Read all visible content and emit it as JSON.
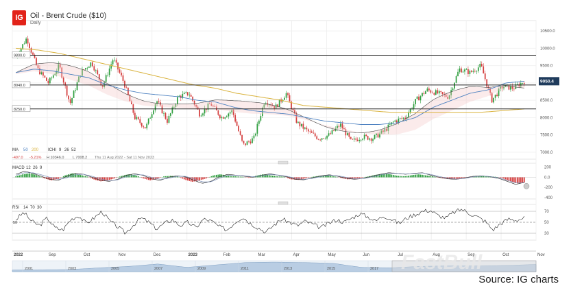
{
  "header": {
    "logo": "IG",
    "title": "Oil - Brent Crude ($10)",
    "subtitle": "Daily"
  },
  "source": "Source: IG charts",
  "watermark": "FastBull",
  "chart_data": [
    {
      "type": "line",
      "title": "Oil - Brent Crude ($10)",
      "series_type": "candlestick with MA 50 / MA 200 and Ichimoku cloud",
      "ylim": [
        6800,
        10800
      ],
      "y_ticks": [
        10500,
        10000,
        9500,
        9000,
        8500,
        8000,
        7500,
        7000
      ],
      "x_labels": [
        "2022",
        "Sep",
        "Oct",
        "Nov",
        "Dec",
        "2023",
        "Feb",
        "Mar",
        "Apr",
        "May",
        "Jun",
        "Jul",
        "Aug",
        "Sep",
        "Oct",
        "Nov"
      ],
      "horizontal_levels": [
        {
          "label": "9800.0",
          "value": 9800
        },
        {
          "label": "8940.0",
          "value": 8940
        },
        {
          "label": "8250.0",
          "value": 8250
        }
      ],
      "current_price": "9050.4",
      "close_path": [
        9750,
        10300,
        9400,
        9000,
        9500,
        8400,
        9300,
        9600,
        8900,
        9700,
        9000,
        8000,
        7700,
        8500,
        7900,
        8600,
        8700,
        8100,
        8400,
        8000,
        8200,
        7200,
        7400,
        8500,
        8300,
        8700,
        7850,
        7600,
        7400,
        7500,
        7800,
        7300,
        7450,
        7400,
        7600,
        7900,
        8000,
        8500,
        8800,
        8700,
        8600,
        9400,
        9300,
        9500,
        8500,
        8900,
        8850,
        9050
      ],
      "ma50": [
        9300,
        9400,
        9350,
        9250,
        9150,
        8950,
        8800,
        8700,
        8650,
        8600,
        8500,
        8450,
        8300,
        8200,
        8150,
        8100,
        8000,
        7900,
        7850,
        7800,
        7800,
        7850,
        8000,
        8300,
        8500,
        8700,
        8800,
        9000,
        9050
      ],
      "ma200": [
        10000,
        9950,
        9850,
        9700,
        9550,
        9400,
        9250,
        9100,
        8950,
        8850,
        8700,
        8600,
        8500,
        8350,
        8300,
        8250,
        8200,
        8150,
        8150,
        8150,
        8150,
        8150,
        8200,
        8250
      ],
      "indicator_legend": {
        "ma": [
          "MA",
          "50",
          "200"
        ],
        "ichimoku": [
          "ICHI",
          "9",
          "26",
          "52"
        ]
      },
      "stats": {
        "change": "-497.0",
        "change_pct": "-5.21%",
        "high": "H 10346.0",
        "low": "L 7008.2",
        "range": "Thu 11 Aug 2022 - Sat 11 Nov 2023"
      }
    },
    {
      "type": "bar",
      "title": "MACD",
      "params": [
        "12",
        "26",
        "9"
      ],
      "y_ticks": [
        "200",
        "0.0",
        "-200",
        "-400"
      ],
      "ylim": [
        -400,
        250
      ],
      "histogram": [
        20,
        60,
        80,
        40,
        -20,
        -60,
        -30,
        40,
        80,
        50,
        20,
        -40,
        -80,
        -60,
        -20,
        30,
        60,
        40,
        -20,
        -60,
        -30,
        20,
        30,
        10,
        -50,
        -90,
        -60,
        -20,
        40,
        60,
        30,
        20,
        10,
        -10,
        30,
        60,
        40,
        20,
        10,
        -40,
        -50,
        -20,
        10,
        30,
        40,
        20,
        -10,
        -40,
        -30,
        -10,
        20,
        50,
        70,
        60,
        30,
        20,
        40,
        60,
        40,
        20,
        -10,
        -30,
        -40,
        -20,
        -10,
        20,
        30,
        20,
        10,
        -20,
        -80,
        -120,
        -100
      ],
      "macd": [
        60,
        120,
        80,
        20,
        -40,
        -60,
        20,
        80,
        60,
        0,
        -60,
        -80,
        -40,
        40,
        70,
        40,
        -30,
        -60,
        0,
        30,
        10,
        -60,
        -120,
        -80,
        10,
        60,
        40,
        20,
        0,
        40,
        70,
        40,
        10,
        -40,
        -50,
        -10,
        30,
        50,
        20,
        -20,
        -40,
        -20,
        20,
        60,
        90,
        80,
        60,
        80,
        90,
        40,
        0,
        -30,
        -40,
        -10,
        20,
        30,
        10,
        -20,
        -80,
        -140,
        -100
      ],
      "signal": [
        40,
        90,
        90,
        50,
        0,
        -40,
        -10,
        50,
        60,
        20,
        -30,
        -70,
        -50,
        10,
        50,
        50,
        0,
        -40,
        -20,
        20,
        20,
        -30,
        -90,
        -90,
        -20,
        40,
        40,
        30,
        10,
        30,
        55,
        45,
        20,
        -20,
        -40,
        -20,
        15,
        40,
        30,
        0,
        -30,
        -25,
        5,
        45,
        75,
        80,
        65,
        75,
        85,
        55,
        15,
        -15,
        -35,
        -20,
        10,
        25,
        15,
        -10,
        -60,
        -110,
        -110
      ]
    },
    {
      "type": "line",
      "title": "RSI",
      "params": [
        "14",
        "70",
        "30"
      ],
      "y_ticks": [
        "70",
        "50",
        "30"
      ],
      "ylim": [
        20,
        80
      ],
      "values": [
        55,
        68,
        52,
        44,
        58,
        40,
        36,
        55,
        62,
        48,
        58,
        70,
        52,
        42,
        30,
        45,
        58,
        50,
        38,
        48,
        55,
        44,
        50,
        40,
        56,
        52,
        42,
        36,
        50,
        60,
        48,
        40,
        32,
        45,
        56,
        50,
        44,
        52,
        46,
        40,
        48,
        55,
        50,
        58,
        66,
        60,
        52,
        62,
        56,
        48,
        58,
        64,
        70,
        72,
        62,
        58,
        68,
        74,
        66,
        60,
        52,
        36,
        48,
        56,
        54,
        58
      ]
    }
  ],
  "timeline": {
    "labels": [
      "2001",
      "2003",
      "2005",
      "2007",
      "2009",
      "2011",
      "2013",
      "2015",
      "2017"
    ],
    "values": [
      18,
      20,
      22,
      40,
      55,
      80,
      45,
      70,
      95,
      100,
      95,
      88,
      45,
      40,
      55,
      60,
      60,
      65,
      75
    ]
  }
}
